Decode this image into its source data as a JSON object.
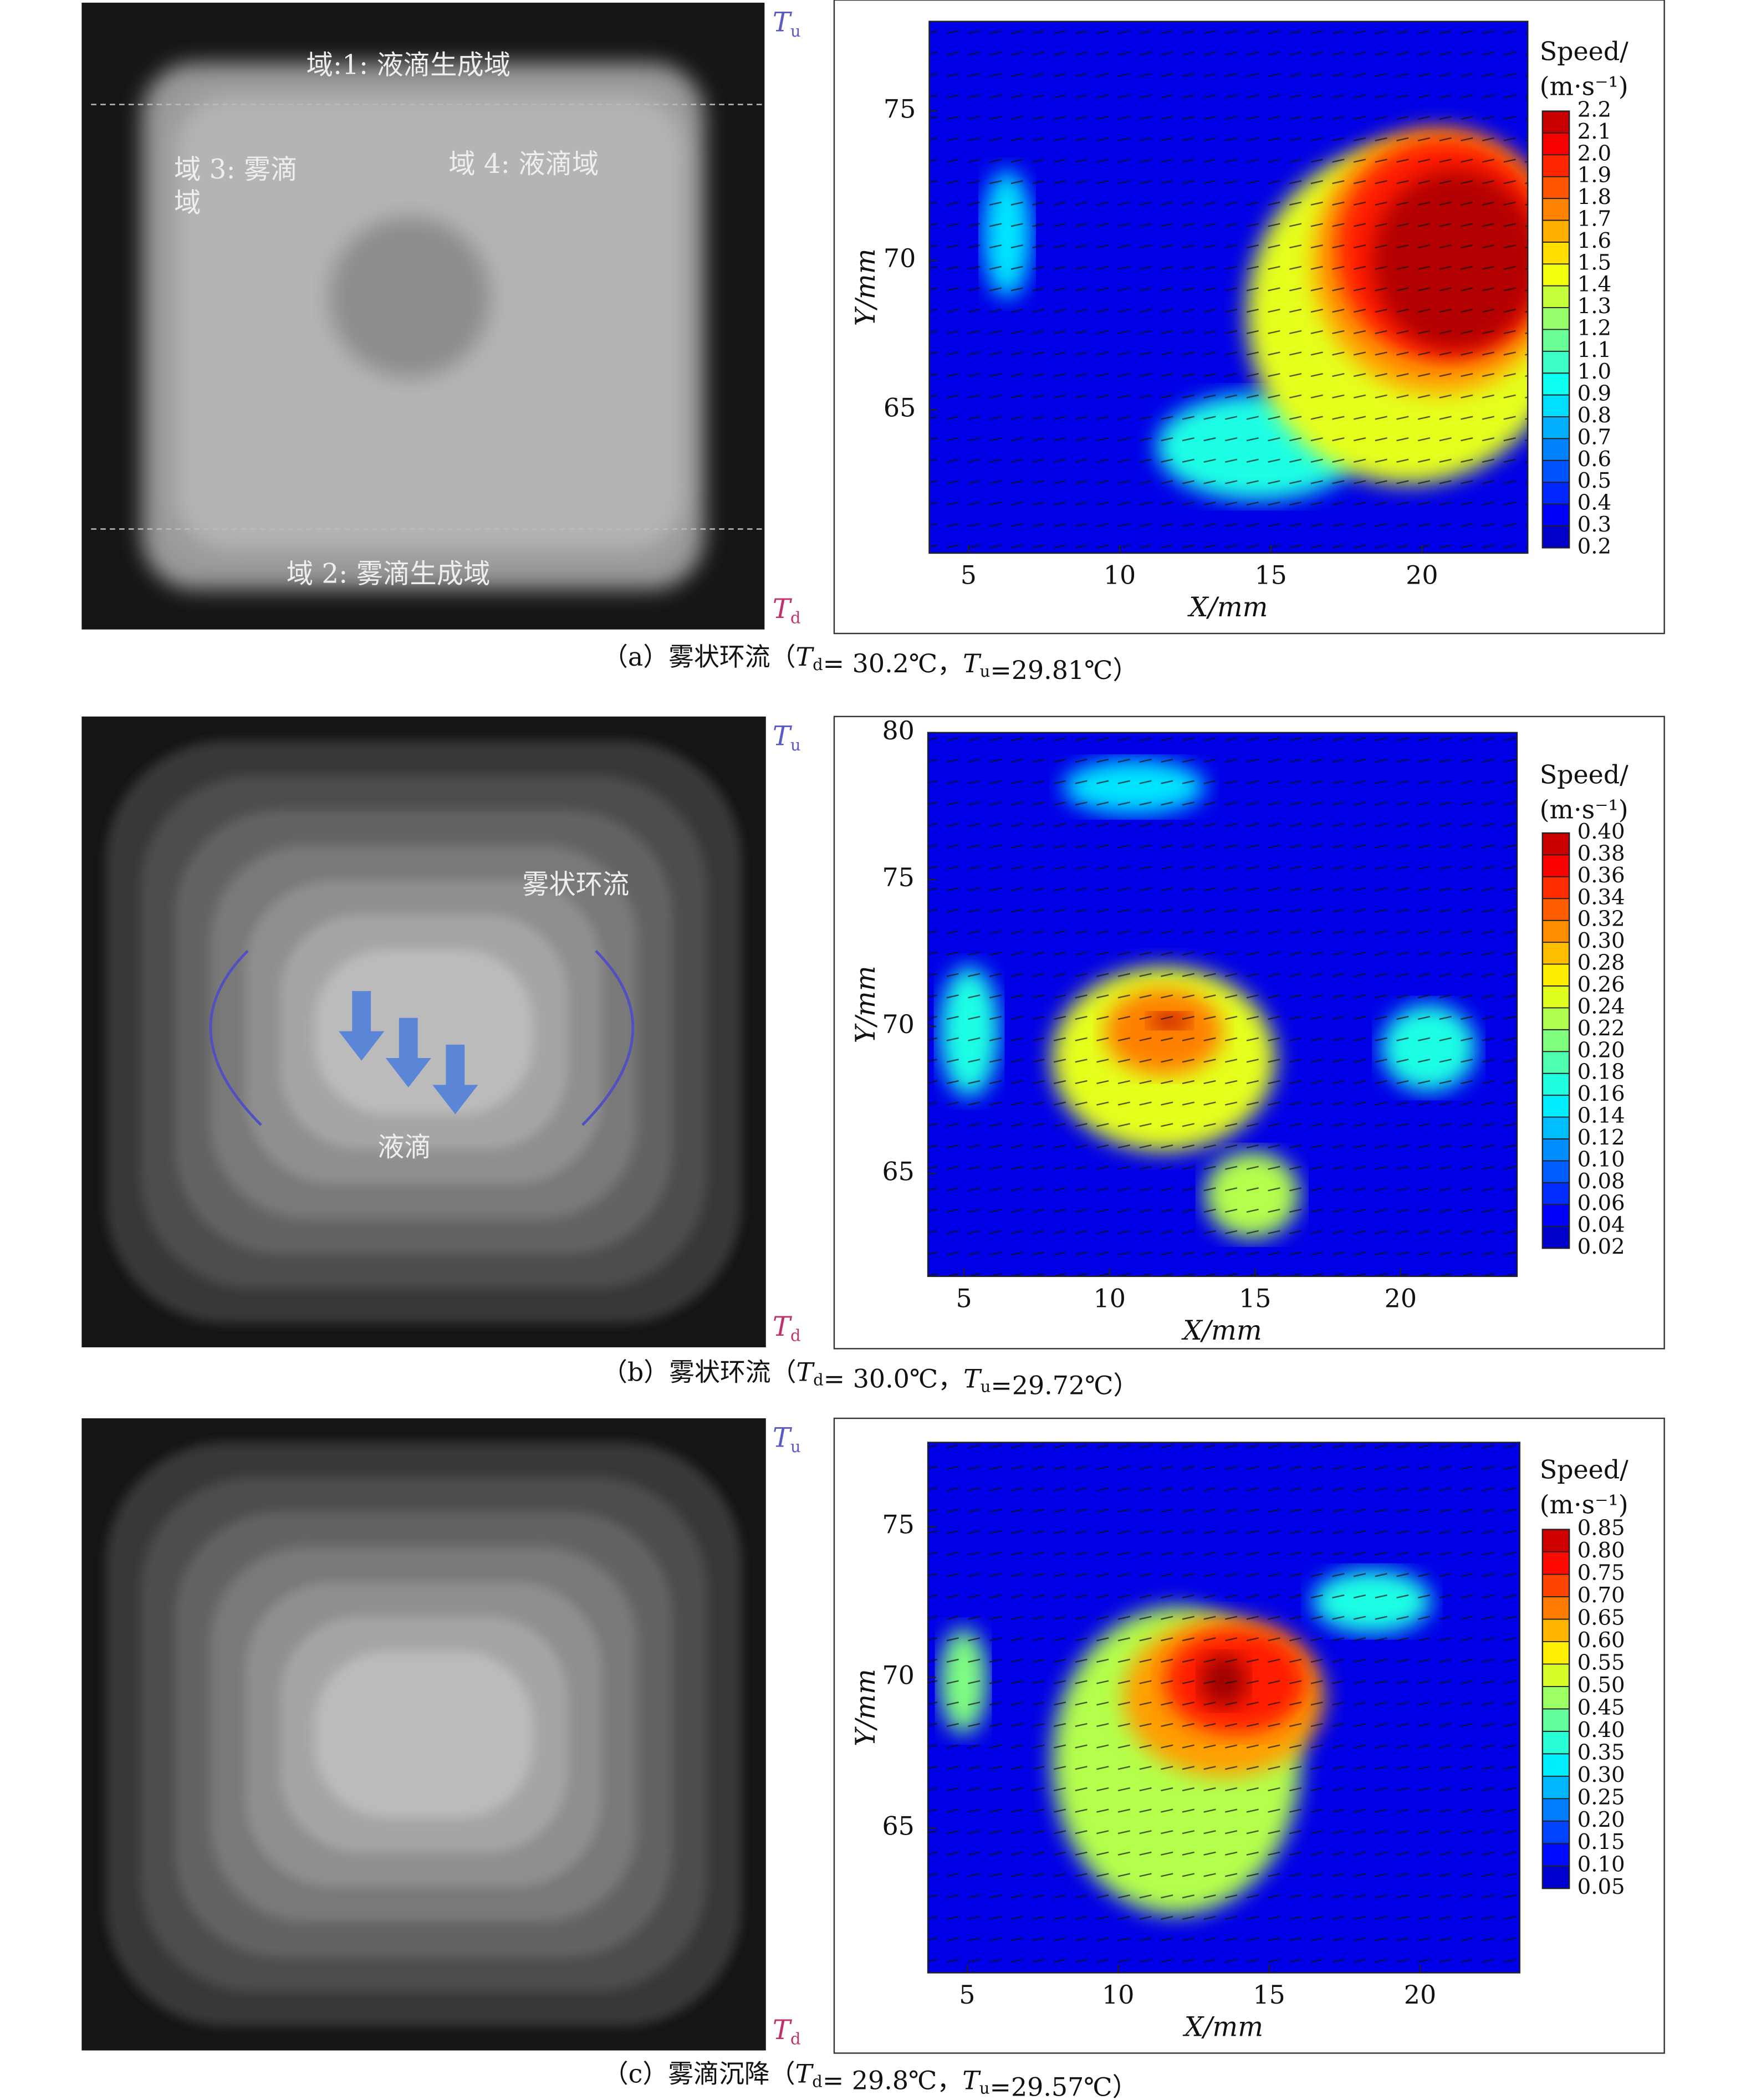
{
  "panels": [
    {
      "photo": {
        "labels": [
          "域:1: 液滴生成域",
          "域 3: 雾滴",
          "域",
          "域 4: 液滴域",
          "域 2: 雾滴生成域"
        ],
        "t_top": {
          "text": "T",
          "sub": "u"
        },
        "t_bottom": {
          "text": "T",
          "sub": "d"
        }
      },
      "caption": [
        {
          "text": "（a）雾状环流（"
        },
        {
          "text": "T",
          "sub": "d"
        },
        {
          "text": "= 30.2℃，"
        },
        {
          "text": "T",
          "sub": "u"
        },
        {
          "text": "=29.81℃）"
        }
      ]
    },
    {
      "photo": {
        "labels": [
          "雾状环流",
          "液滴"
        ],
        "t_top": {
          "text": "T",
          "sub": "u"
        },
        "t_bottom": {
          "text": "T",
          "sub": "d"
        }
      },
      "caption": [
        {
          "text": "（b）雾状环流（"
        },
        {
          "text": "T",
          "sub": "d"
        },
        {
          "text": "= 30.0℃，"
        },
        {
          "text": "T",
          "sub": "u"
        },
        {
          "text": "=29.72℃）"
        }
      ]
    },
    {
      "photo": {
        "labels": [],
        "t_top": {
          "text": "T",
          "sub": "u"
        },
        "t_bottom": {
          "text": "T",
          "sub": "d"
        }
      },
      "caption": [
        {
          "text": "（c）雾滴沉降（"
        },
        {
          "text": "T",
          "sub": "d"
        },
        {
          "text": "= 29.8℃，"
        },
        {
          "text": "T",
          "sub": "u"
        },
        {
          "text": "=29.57℃）"
        }
      ]
    }
  ],
  "chart_data": [
    {
      "type": "heatmap",
      "xlabel": "X/mm",
      "ylabel": "Y/mm",
      "xlim": [
        3.7,
        23.5
      ],
      "ylim": [
        60.2,
        78
      ],
      "xticks": [
        5,
        10,
        15,
        20
      ],
      "yticks": [
        65,
        70,
        75
      ],
      "colorbar": {
        "title": [
          "Speed/",
          "(m·s⁻¹)"
        ],
        "ticks": [
          2.2,
          2.1,
          {
            "value": 2,
            "label": "2.0"
          },
          1.9,
          1.8,
          1.7,
          1.6,
          1.5,
          1.4,
          1.3,
          1.2,
          1.1,
          {
            "value": 1,
            "label": "1.0"
          },
          0.9,
          0.8,
          0.7,
          0.6,
          0.5,
          0.4,
          0.3,
          0.2
        ]
      }
    },
    {
      "type": "heatmap",
      "xlabel": "X/mm",
      "ylabel": "Y/mm",
      "xlim": [
        3.76,
        24
      ],
      "ylim": [
        61.5,
        80
      ],
      "xticks": [
        5,
        10,
        15,
        20
      ],
      "yticks": [
        65,
        70,
        75,
        80
      ],
      "colorbar": {
        "title": [
          "Speed/",
          "(m·s⁻¹)"
        ],
        "ticks": [
          {
            "value": 0.4,
            "label": "0.40"
          },
          0.38,
          0.36,
          0.34,
          0.32,
          {
            "value": 0.3,
            "label": "0.30"
          },
          0.28,
          0.26,
          0.24,
          0.22,
          {
            "value": 0.2,
            "label": "0.20"
          },
          0.18,
          0.16,
          0.14,
          0.12,
          {
            "value": 0.1,
            "label": "0.10"
          },
          0.08,
          0.06,
          0.04,
          0.02
        ]
      }
    },
    {
      "type": "heatmap",
      "xlabel": "X/mm",
      "ylabel": "Y/mm",
      "xlim": [
        3.7,
        23.3
      ],
      "ylim": [
        60.2,
        77.8
      ],
      "xticks": [
        5,
        10,
        15,
        20
      ],
      "yticks": [
        65,
        70,
        75
      ],
      "colorbar": {
        "title": [
          "Speed/",
          "(m·s⁻¹)"
        ],
        "ticks": [
          0.85,
          {
            "value": 0.8,
            "label": "0.80"
          },
          0.75,
          {
            "value": 0.7,
            "label": "0.70"
          },
          0.65,
          {
            "value": 0.6,
            "label": "0.60"
          },
          0.55,
          {
            "value": 0.5,
            "label": "0.50"
          },
          0.45,
          {
            "value": 0.4,
            "label": "0.40"
          },
          0.35,
          {
            "value": 0.3,
            "label": "0.30"
          },
          0.25,
          {
            "value": 0.2,
            "label": "0.20"
          },
          0.15,
          {
            "value": 0.1,
            "label": "0.10"
          },
          0.05
        ]
      }
    }
  ]
}
